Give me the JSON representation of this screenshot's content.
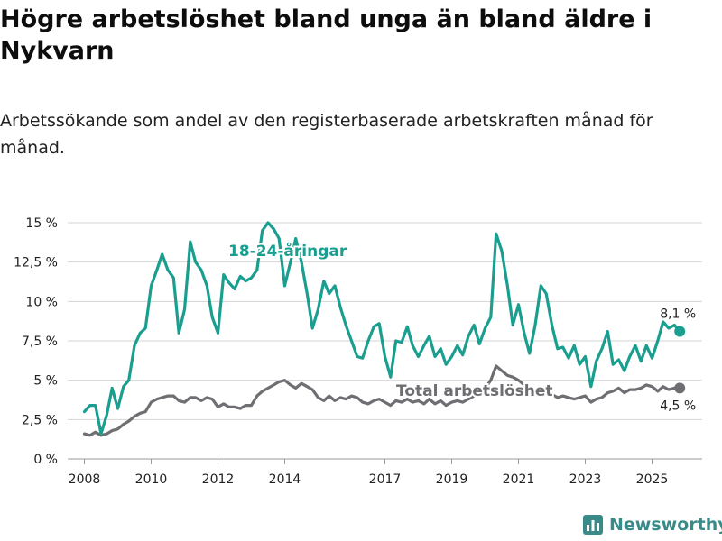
{
  "title": "Högre arbetslöshet bland unga än bland äldre i Nykvarn",
  "subtitle": "Arbetssökande som andel av den registerbaserade arbetskraften månad för månad.",
  "brand": "Newsworthy",
  "colors": {
    "youth": "#1a9e8f",
    "total": "#6e6e73",
    "grid": "#d4d4d4",
    "axis": "#999999"
  },
  "chart_data": {
    "type": "line",
    "title": "Högre arbetslöshet bland unga än bland äldre i Nykvarn",
    "xlabel": "",
    "ylabel": "",
    "xlim": [
      2007.5,
      2026.5
    ],
    "ylim": [
      0,
      15
    ],
    "y_ticks": [
      0,
      2.5,
      5,
      7.5,
      10,
      12.5,
      15
    ],
    "y_tick_labels": [
      "0 %",
      "2,5 %",
      "5 %",
      "7,5 %",
      "10 %",
      "12,5 %",
      "15 %"
    ],
    "x_ticks": [
      2008,
      2010,
      2012,
      2014,
      2017,
      2019,
      2021,
      2023,
      2025
    ],
    "x_tick_labels": [
      "2008",
      "2010",
      "2012",
      "2014",
      "2017",
      "2019",
      "2021",
      "2023",
      "2025"
    ],
    "grid": true,
    "series": [
      {
        "name": "18-24-åringar",
        "color": "#1a9e8f",
        "end_label": "8,1 %",
        "points": [
          [
            2008.0,
            3.0
          ],
          [
            2008.17,
            3.4
          ],
          [
            2008.33,
            3.4
          ],
          [
            2008.5,
            1.6
          ],
          [
            2008.67,
            2.8
          ],
          [
            2008.83,
            4.5
          ],
          [
            2009.0,
            3.2
          ],
          [
            2009.17,
            4.6
          ],
          [
            2009.33,
            5.0
          ],
          [
            2009.5,
            7.2
          ],
          [
            2009.67,
            8.0
          ],
          [
            2009.83,
            8.3
          ],
          [
            2010.0,
            11.0
          ],
          [
            2010.17,
            12.0
          ],
          [
            2010.33,
            13.0
          ],
          [
            2010.5,
            12.0
          ],
          [
            2010.67,
            11.5
          ],
          [
            2010.83,
            8.0
          ],
          [
            2011.0,
            9.5
          ],
          [
            2011.17,
            13.8
          ],
          [
            2011.33,
            12.5
          ],
          [
            2011.5,
            12.0
          ],
          [
            2011.67,
            11.0
          ],
          [
            2011.83,
            9.0
          ],
          [
            2012.0,
            8.0
          ],
          [
            2012.17,
            11.7
          ],
          [
            2012.33,
            11.2
          ],
          [
            2012.5,
            10.8
          ],
          [
            2012.67,
            11.6
          ],
          [
            2012.83,
            11.3
          ],
          [
            2013.0,
            11.5
          ],
          [
            2013.17,
            12.0
          ],
          [
            2013.33,
            14.5
          ],
          [
            2013.5,
            15.0
          ],
          [
            2013.67,
            14.6
          ],
          [
            2013.83,
            14.0
          ],
          [
            2014.0,
            11.0
          ],
          [
            2014.17,
            12.5
          ],
          [
            2014.33,
            14.0
          ],
          [
            2014.5,
            12.5
          ],
          [
            2014.67,
            10.5
          ],
          [
            2014.83,
            8.3
          ],
          [
            2015.0,
            9.5
          ],
          [
            2015.17,
            11.3
          ],
          [
            2015.33,
            10.5
          ],
          [
            2015.5,
            11.0
          ],
          [
            2015.67,
            9.6
          ],
          [
            2015.83,
            8.5
          ],
          [
            2016.0,
            7.5
          ],
          [
            2016.17,
            6.5
          ],
          [
            2016.33,
            6.4
          ],
          [
            2016.5,
            7.5
          ],
          [
            2016.67,
            8.4
          ],
          [
            2016.83,
            8.6
          ],
          [
            2017.0,
            6.5
          ],
          [
            2017.17,
            5.2
          ],
          [
            2017.33,
            7.5
          ],
          [
            2017.5,
            7.4
          ],
          [
            2017.67,
            8.4
          ],
          [
            2017.83,
            7.2
          ],
          [
            2018.0,
            6.5
          ],
          [
            2018.17,
            7.2
          ],
          [
            2018.33,
            7.8
          ],
          [
            2018.5,
            6.5
          ],
          [
            2018.67,
            7.0
          ],
          [
            2018.83,
            6.0
          ],
          [
            2019.0,
            6.5
          ],
          [
            2019.17,
            7.2
          ],
          [
            2019.33,
            6.6
          ],
          [
            2019.5,
            7.8
          ],
          [
            2019.67,
            8.5
          ],
          [
            2019.83,
            7.3
          ],
          [
            2020.0,
            8.3
          ],
          [
            2020.17,
            9.0
          ],
          [
            2020.33,
            14.3
          ],
          [
            2020.5,
            13.2
          ],
          [
            2020.67,
            11.0
          ],
          [
            2020.83,
            8.5
          ],
          [
            2021.0,
            9.8
          ],
          [
            2021.17,
            8.0
          ],
          [
            2021.33,
            6.7
          ],
          [
            2021.5,
            8.5
          ],
          [
            2021.67,
            11.0
          ],
          [
            2021.83,
            10.5
          ],
          [
            2022.0,
            8.5
          ],
          [
            2022.17,
            7.0
          ],
          [
            2022.33,
            7.1
          ],
          [
            2022.5,
            6.4
          ],
          [
            2022.67,
            7.2
          ],
          [
            2022.83,
            6.0
          ],
          [
            2023.0,
            6.5
          ],
          [
            2023.17,
            4.6
          ],
          [
            2023.33,
            6.2
          ],
          [
            2023.5,
            7.0
          ],
          [
            2023.67,
            8.1
          ],
          [
            2023.83,
            6.0
          ],
          [
            2024.0,
            6.3
          ],
          [
            2024.17,
            5.6
          ],
          [
            2024.33,
            6.5
          ],
          [
            2024.5,
            7.2
          ],
          [
            2024.67,
            6.2
          ],
          [
            2024.83,
            7.2
          ],
          [
            2025.0,
            6.4
          ],
          [
            2025.17,
            7.5
          ],
          [
            2025.33,
            8.7
          ],
          [
            2025.5,
            8.3
          ],
          [
            2025.67,
            8.5
          ],
          [
            2025.83,
            8.1
          ]
        ]
      },
      {
        "name": "Total arbetslöshet",
        "color": "#6e6e73",
        "end_label": "4,5 %",
        "points": [
          [
            2008.0,
            1.6
          ],
          [
            2008.17,
            1.5
          ],
          [
            2008.33,
            1.7
          ],
          [
            2008.5,
            1.5
          ],
          [
            2008.67,
            1.6
          ],
          [
            2008.83,
            1.8
          ],
          [
            2009.0,
            1.9
          ],
          [
            2009.17,
            2.2
          ],
          [
            2009.33,
            2.4
          ],
          [
            2009.5,
            2.7
          ],
          [
            2009.67,
            2.9
          ],
          [
            2009.83,
            3.0
          ],
          [
            2010.0,
            3.6
          ],
          [
            2010.17,
            3.8
          ],
          [
            2010.33,
            3.9
          ],
          [
            2010.5,
            4.0
          ],
          [
            2010.67,
            4.0
          ],
          [
            2010.83,
            3.7
          ],
          [
            2011.0,
            3.6
          ],
          [
            2011.17,
            3.9
          ],
          [
            2011.33,
            3.9
          ],
          [
            2011.5,
            3.7
          ],
          [
            2011.67,
            3.9
          ],
          [
            2011.83,
            3.8
          ],
          [
            2012.0,
            3.3
          ],
          [
            2012.17,
            3.5
          ],
          [
            2012.33,
            3.3
          ],
          [
            2012.5,
            3.3
          ],
          [
            2012.67,
            3.2
          ],
          [
            2012.83,
            3.4
          ],
          [
            2013.0,
            3.4
          ],
          [
            2013.17,
            4.0
          ],
          [
            2013.33,
            4.3
          ],
          [
            2013.5,
            4.5
          ],
          [
            2013.67,
            4.7
          ],
          [
            2013.83,
            4.9
          ],
          [
            2014.0,
            5.0
          ],
          [
            2014.17,
            4.7
          ],
          [
            2014.33,
            4.5
          ],
          [
            2014.5,
            4.8
          ],
          [
            2014.67,
            4.6
          ],
          [
            2014.83,
            4.4
          ],
          [
            2015.0,
            3.9
          ],
          [
            2015.17,
            3.7
          ],
          [
            2015.33,
            4.0
          ],
          [
            2015.5,
            3.7
          ],
          [
            2015.67,
            3.9
          ],
          [
            2015.83,
            3.8
          ],
          [
            2016.0,
            4.0
          ],
          [
            2016.17,
            3.9
          ],
          [
            2016.33,
            3.6
          ],
          [
            2016.5,
            3.5
          ],
          [
            2016.67,
            3.7
          ],
          [
            2016.83,
            3.8
          ],
          [
            2017.0,
            3.6
          ],
          [
            2017.17,
            3.4
          ],
          [
            2017.33,
            3.7
          ],
          [
            2017.5,
            3.6
          ],
          [
            2017.67,
            3.8
          ],
          [
            2017.83,
            3.6
          ],
          [
            2018.0,
            3.7
          ],
          [
            2018.17,
            3.5
          ],
          [
            2018.33,
            3.8
          ],
          [
            2018.5,
            3.5
          ],
          [
            2018.67,
            3.7
          ],
          [
            2018.83,
            3.4
          ],
          [
            2019.0,
            3.6
          ],
          [
            2019.17,
            3.7
          ],
          [
            2019.33,
            3.6
          ],
          [
            2019.5,
            3.8
          ],
          [
            2019.67,
            4.0
          ],
          [
            2019.83,
            4.2
          ],
          [
            2020.0,
            4.5
          ],
          [
            2020.17,
            5.0
          ],
          [
            2020.33,
            5.9
          ],
          [
            2020.5,
            5.6
          ],
          [
            2020.67,
            5.3
          ],
          [
            2020.83,
            5.2
          ],
          [
            2021.0,
            5.0
          ],
          [
            2021.17,
            4.7
          ],
          [
            2021.33,
            4.3
          ],
          [
            2021.5,
            4.4
          ],
          [
            2021.67,
            4.5
          ],
          [
            2021.83,
            4.3
          ],
          [
            2022.0,
            4.1
          ],
          [
            2022.17,
            3.9
          ],
          [
            2022.33,
            4.0
          ],
          [
            2022.5,
            3.9
          ],
          [
            2022.67,
            3.8
          ],
          [
            2022.83,
            3.9
          ],
          [
            2023.0,
            4.0
          ],
          [
            2023.17,
            3.6
          ],
          [
            2023.33,
            3.8
          ],
          [
            2023.5,
            3.9
          ],
          [
            2023.67,
            4.2
          ],
          [
            2023.83,
            4.3
          ],
          [
            2024.0,
            4.5
          ],
          [
            2024.17,
            4.2
          ],
          [
            2024.33,
            4.4
          ],
          [
            2024.5,
            4.4
          ],
          [
            2024.67,
            4.5
          ],
          [
            2024.83,
            4.7
          ],
          [
            2025.0,
            4.6
          ],
          [
            2025.17,
            4.3
          ],
          [
            2025.33,
            4.6
          ],
          [
            2025.5,
            4.4
          ],
          [
            2025.67,
            4.5
          ],
          [
            2025.83,
            4.5
          ]
        ]
      }
    ]
  }
}
